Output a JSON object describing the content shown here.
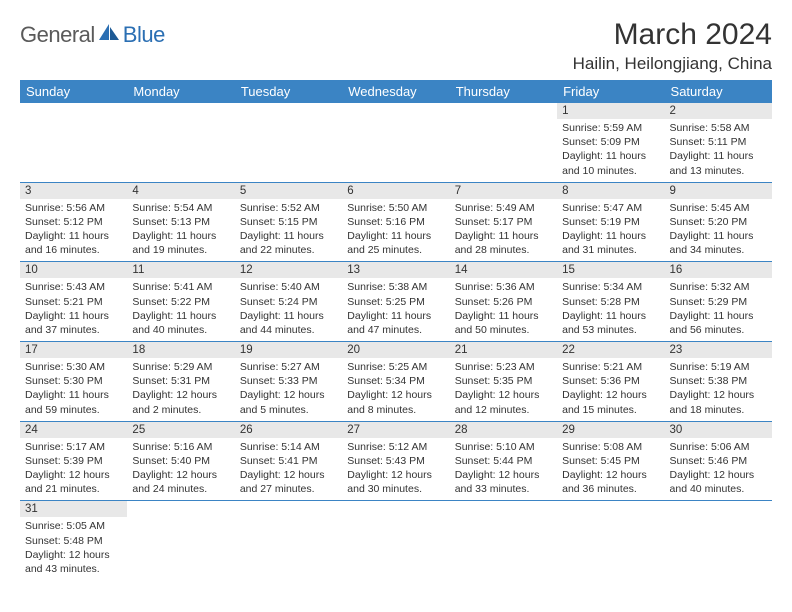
{
  "logo": {
    "part1": "General",
    "part2": "Blue"
  },
  "title": "March 2024",
  "location": "Hailin, Heilongjiang, China",
  "colors": {
    "header_bg": "#3b84c4",
    "header_text": "#ffffff",
    "daynum_bg": "#e8e8e8",
    "cell_border": "#3b84c4",
    "logo_grey": "#5a5a5a",
    "logo_blue": "#2b6fb3"
  },
  "weekdays": [
    "Sunday",
    "Monday",
    "Tuesday",
    "Wednesday",
    "Thursday",
    "Friday",
    "Saturday"
  ],
  "weeks": [
    [
      {
        "n": "",
        "lines": []
      },
      {
        "n": "",
        "lines": []
      },
      {
        "n": "",
        "lines": []
      },
      {
        "n": "",
        "lines": []
      },
      {
        "n": "",
        "lines": []
      },
      {
        "n": "1",
        "lines": [
          "Sunrise: 5:59 AM",
          "Sunset: 5:09 PM",
          "Daylight: 11 hours and 10 minutes."
        ]
      },
      {
        "n": "2",
        "lines": [
          "Sunrise: 5:58 AM",
          "Sunset: 5:11 PM",
          "Daylight: 11 hours and 13 minutes."
        ]
      }
    ],
    [
      {
        "n": "3",
        "lines": [
          "Sunrise: 5:56 AM",
          "Sunset: 5:12 PM",
          "Daylight: 11 hours and 16 minutes."
        ]
      },
      {
        "n": "4",
        "lines": [
          "Sunrise: 5:54 AM",
          "Sunset: 5:13 PM",
          "Daylight: 11 hours and 19 minutes."
        ]
      },
      {
        "n": "5",
        "lines": [
          "Sunrise: 5:52 AM",
          "Sunset: 5:15 PM",
          "Daylight: 11 hours and 22 minutes."
        ]
      },
      {
        "n": "6",
        "lines": [
          "Sunrise: 5:50 AM",
          "Sunset: 5:16 PM",
          "Daylight: 11 hours and 25 minutes."
        ]
      },
      {
        "n": "7",
        "lines": [
          "Sunrise: 5:49 AM",
          "Sunset: 5:17 PM",
          "Daylight: 11 hours and 28 minutes."
        ]
      },
      {
        "n": "8",
        "lines": [
          "Sunrise: 5:47 AM",
          "Sunset: 5:19 PM",
          "Daylight: 11 hours and 31 minutes."
        ]
      },
      {
        "n": "9",
        "lines": [
          "Sunrise: 5:45 AM",
          "Sunset: 5:20 PM",
          "Daylight: 11 hours and 34 minutes."
        ]
      }
    ],
    [
      {
        "n": "10",
        "lines": [
          "Sunrise: 5:43 AM",
          "Sunset: 5:21 PM",
          "Daylight: 11 hours and 37 minutes."
        ]
      },
      {
        "n": "11",
        "lines": [
          "Sunrise: 5:41 AM",
          "Sunset: 5:22 PM",
          "Daylight: 11 hours and 40 minutes."
        ]
      },
      {
        "n": "12",
        "lines": [
          "Sunrise: 5:40 AM",
          "Sunset: 5:24 PM",
          "Daylight: 11 hours and 44 minutes."
        ]
      },
      {
        "n": "13",
        "lines": [
          "Sunrise: 5:38 AM",
          "Sunset: 5:25 PM",
          "Daylight: 11 hours and 47 minutes."
        ]
      },
      {
        "n": "14",
        "lines": [
          "Sunrise: 5:36 AM",
          "Sunset: 5:26 PM",
          "Daylight: 11 hours and 50 minutes."
        ]
      },
      {
        "n": "15",
        "lines": [
          "Sunrise: 5:34 AM",
          "Sunset: 5:28 PM",
          "Daylight: 11 hours and 53 minutes."
        ]
      },
      {
        "n": "16",
        "lines": [
          "Sunrise: 5:32 AM",
          "Sunset: 5:29 PM",
          "Daylight: 11 hours and 56 minutes."
        ]
      }
    ],
    [
      {
        "n": "17",
        "lines": [
          "Sunrise: 5:30 AM",
          "Sunset: 5:30 PM",
          "Daylight: 11 hours and 59 minutes."
        ]
      },
      {
        "n": "18",
        "lines": [
          "Sunrise: 5:29 AM",
          "Sunset: 5:31 PM",
          "Daylight: 12 hours and 2 minutes."
        ]
      },
      {
        "n": "19",
        "lines": [
          "Sunrise: 5:27 AM",
          "Sunset: 5:33 PM",
          "Daylight: 12 hours and 5 minutes."
        ]
      },
      {
        "n": "20",
        "lines": [
          "Sunrise: 5:25 AM",
          "Sunset: 5:34 PM",
          "Daylight: 12 hours and 8 minutes."
        ]
      },
      {
        "n": "21",
        "lines": [
          "Sunrise: 5:23 AM",
          "Sunset: 5:35 PM",
          "Daylight: 12 hours and 12 minutes."
        ]
      },
      {
        "n": "22",
        "lines": [
          "Sunrise: 5:21 AM",
          "Sunset: 5:36 PM",
          "Daylight: 12 hours and 15 minutes."
        ]
      },
      {
        "n": "23",
        "lines": [
          "Sunrise: 5:19 AM",
          "Sunset: 5:38 PM",
          "Daylight: 12 hours and 18 minutes."
        ]
      }
    ],
    [
      {
        "n": "24",
        "lines": [
          "Sunrise: 5:17 AM",
          "Sunset: 5:39 PM",
          "Daylight: 12 hours and 21 minutes."
        ]
      },
      {
        "n": "25",
        "lines": [
          "Sunrise: 5:16 AM",
          "Sunset: 5:40 PM",
          "Daylight: 12 hours and 24 minutes."
        ]
      },
      {
        "n": "26",
        "lines": [
          "Sunrise: 5:14 AM",
          "Sunset: 5:41 PM",
          "Daylight: 12 hours and 27 minutes."
        ]
      },
      {
        "n": "27",
        "lines": [
          "Sunrise: 5:12 AM",
          "Sunset: 5:43 PM",
          "Daylight: 12 hours and 30 minutes."
        ]
      },
      {
        "n": "28",
        "lines": [
          "Sunrise: 5:10 AM",
          "Sunset: 5:44 PM",
          "Daylight: 12 hours and 33 minutes."
        ]
      },
      {
        "n": "29",
        "lines": [
          "Sunrise: 5:08 AM",
          "Sunset: 5:45 PM",
          "Daylight: 12 hours and 36 minutes."
        ]
      },
      {
        "n": "30",
        "lines": [
          "Sunrise: 5:06 AM",
          "Sunset: 5:46 PM",
          "Daylight: 12 hours and 40 minutes."
        ]
      }
    ],
    [
      {
        "n": "31",
        "lines": [
          "Sunrise: 5:05 AM",
          "Sunset: 5:48 PM",
          "Daylight: 12 hours and 43 minutes."
        ]
      },
      {
        "n": "",
        "lines": []
      },
      {
        "n": "",
        "lines": []
      },
      {
        "n": "",
        "lines": []
      },
      {
        "n": "",
        "lines": []
      },
      {
        "n": "",
        "lines": []
      },
      {
        "n": "",
        "lines": []
      }
    ]
  ]
}
